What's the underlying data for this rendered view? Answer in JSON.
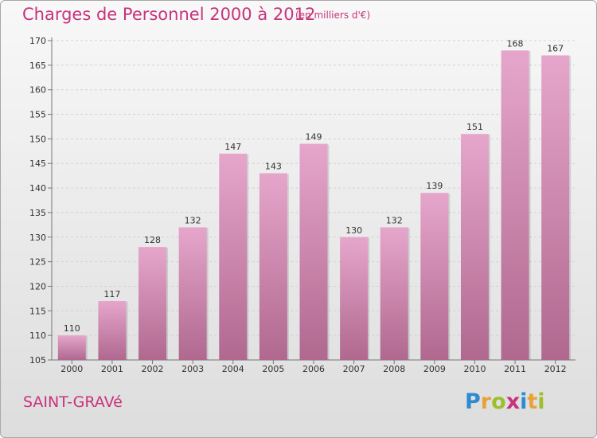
{
  "header": {
    "title": "Charges de Personnel 2000 à 2012",
    "subtitle": "(en milliers d'€)"
  },
  "footer": {
    "commune": "SAINT-GRAVé",
    "logo": "Proxiti"
  },
  "colors": {
    "accent": "#c8337c",
    "bar_top": "#e6a6cb",
    "bar_bottom": "#b0688f"
  },
  "chart_data": {
    "type": "bar",
    "title": "Charges de Personnel 2000 à 2012",
    "subtitle": "(en milliers d'€)",
    "categories": [
      "2000",
      "2001",
      "2002",
      "2003",
      "2004",
      "2005",
      "2006",
      "2007",
      "2008",
      "2009",
      "2010",
      "2011",
      "2012"
    ],
    "values": [
      110,
      117,
      128,
      132,
      147,
      143,
      149,
      130,
      132,
      139,
      151,
      168,
      167
    ],
    "ylim": [
      105,
      170
    ],
    "yticks": [
      105,
      110,
      115,
      120,
      125,
      130,
      135,
      140,
      145,
      150,
      155,
      160,
      165,
      170
    ],
    "grid": true,
    "legend": "none"
  }
}
